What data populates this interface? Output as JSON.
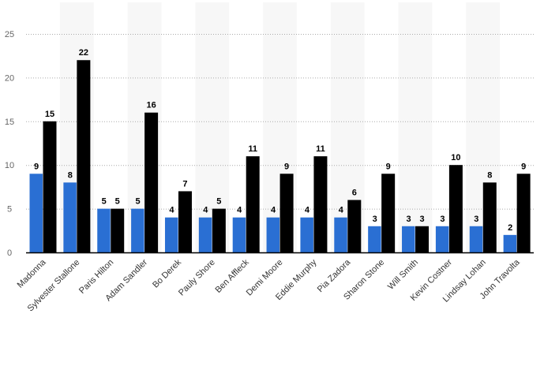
{
  "chart_data": {
    "type": "bar",
    "title": "",
    "xlabel": "",
    "ylabel": "",
    "ylim": [
      0,
      25
    ],
    "yticks": [
      0,
      5,
      10,
      15,
      20,
      25
    ],
    "grid": true,
    "categories": [
      "Madonna",
      "Sylvester Stallone",
      "Paris Hilton",
      "Adam Sandler",
      "Bo Derek",
      "Pauly Shore",
      "Ben Affleck",
      "Demi Moore",
      "Eddie Murphy",
      "Pia Zadora",
      "Sharon Stone",
      "Will Smith",
      "Kevin Costner",
      "Lindsay Lohan",
      "John Travolta"
    ],
    "series": [
      {
        "color": "#2a6fd3",
        "values": [
          9,
          8,
          5,
          5,
          4,
          4,
          4,
          4,
          4,
          4,
          3,
          3,
          3,
          3,
          2
        ]
      },
      {
        "color": "#000000",
        "values": [
          15,
          22,
          5,
          16,
          7,
          5,
          11,
          9,
          11,
          6,
          9,
          3,
          10,
          8,
          9
        ]
      }
    ],
    "band_color": "#f7f7f7",
    "legend": "none"
  }
}
